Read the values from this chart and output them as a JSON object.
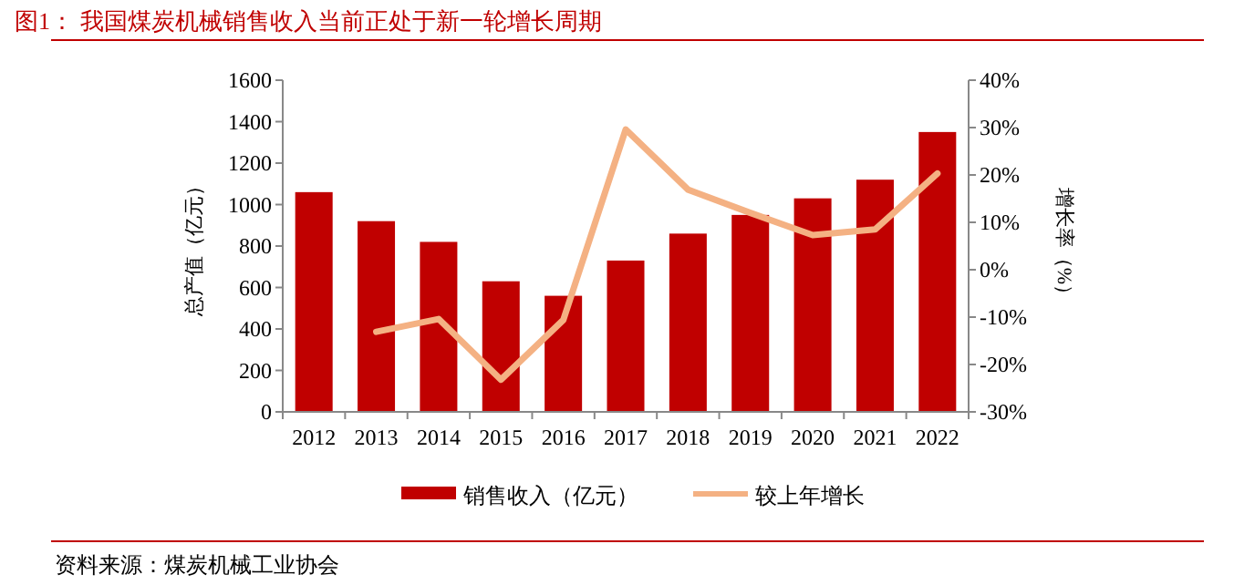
{
  "chart_data": {
    "type": "bar",
    "title": "图1：  我国煤炭机械销售收入当前正处于新一轮增长周期",
    "ylabel": "总产值（亿元）",
    "y2label": "增长率（%）",
    "categories": [
      "2012",
      "2013",
      "2014",
      "2015",
      "2016",
      "2017",
      "2018",
      "2019",
      "2020",
      "2021",
      "2022"
    ],
    "series": [
      {
        "name": "销售收入（亿元）",
        "color": "#c00000",
        "values": [
          1060,
          920,
          820,
          630,
          560,
          730,
          860,
          950,
          1030,
          1120,
          1350
        ]
      },
      {
        "name": "较上年增长",
        "color": "#f4b183",
        "type": "line",
        "axis": "y2",
        "values": [
          null,
          -13.1,
          -10.4,
          -23.2,
          -10.6,
          29.6,
          16.9,
          12.0,
          7.3,
          8.5,
          20.3
        ]
      }
    ],
    "ylim": [
      0,
      1600
    ],
    "yticks": [
      0,
      200,
      400,
      600,
      800,
      1000,
      1200,
      1400,
      1600
    ],
    "y2lim": [
      -30,
      40
    ],
    "y2ticks": [
      {
        "value": -30,
        "label": "-30%"
      },
      {
        "value": -20,
        "label": "-20%"
      },
      {
        "value": -10,
        "label": "-10%"
      },
      {
        "value": 0,
        "label": "0%"
      },
      {
        "value": 10,
        "label": "10%"
      },
      {
        "value": 20,
        "label": "20%"
      },
      {
        "value": 30,
        "label": "30%"
      },
      {
        "value": 40,
        "label": "40%"
      }
    ],
    "grid": false,
    "legend": "bottom",
    "marker": "none",
    "line_style": "solid",
    "annotations": [
      "资料来源：煤炭机械工业协会"
    ]
  }
}
